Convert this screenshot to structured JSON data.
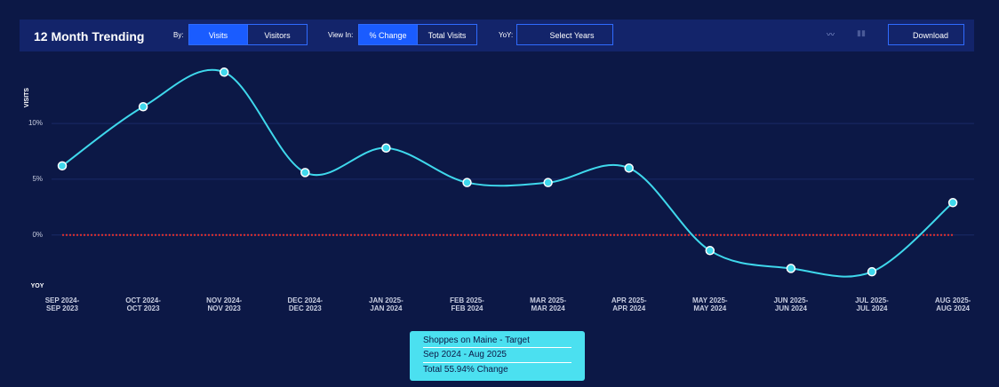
{
  "header": {
    "title": "12 Month Trending",
    "by_label": "By:",
    "by_options": [
      "Visits",
      "Visitors"
    ],
    "view_label": "View In:",
    "view_options": [
      "% Change",
      "Total Visits"
    ],
    "yoy_label": "YoY:",
    "select_years": "Select Years",
    "download": "Download"
  },
  "chart_data": {
    "type": "line",
    "y_label": "VISITS",
    "y_sub_label": "YOY",
    "categories": [
      [
        "SEP 2024-",
        "SEP 2023"
      ],
      [
        "OCT 2024-",
        "OCT 2023"
      ],
      [
        "NOV 2024-",
        "NOV 2023"
      ],
      [
        "DEC 2024-",
        "DEC 2023"
      ],
      [
        "JAN 2025-",
        "JAN 2024"
      ],
      [
        "FEB 2025-",
        "FEB 2024"
      ],
      [
        "MAR 2025-",
        "MAR 2024"
      ],
      [
        "APR 2025-",
        "APR 2024"
      ],
      [
        "MAY 2025-",
        "MAY 2024"
      ],
      [
        "JUN 2025-",
        "JUN 2024"
      ],
      [
        "JUL 2025-",
        "JUL 2024"
      ],
      [
        "AUG 2025-",
        "AUG 2024"
      ]
    ],
    "series": [
      {
        "name": "Shoppes on Maine - Target",
        "color": "#3fd8ec",
        "values": [
          6.2,
          11.5,
          14.6,
          5.6,
          7.8,
          4.7,
          4.7,
          6.0,
          -1.4,
          -3.0,
          -3.3,
          2.9
        ]
      }
    ],
    "ylim": [
      -4.4,
      15.5
    ],
    "yticks": [
      {
        "value": 0,
        "label": "0%"
      },
      {
        "value": 5,
        "label": "5%"
      },
      {
        "value": 10,
        "label": "10%"
      }
    ],
    "grid": true,
    "reference_line": {
      "value": 0,
      "color": "#e0302f"
    }
  },
  "legend_box": {
    "name": "Shoppes on Maine - Target",
    "period": "Sep 2024 - Aug 2025",
    "total": "Total 55.94% Change"
  }
}
